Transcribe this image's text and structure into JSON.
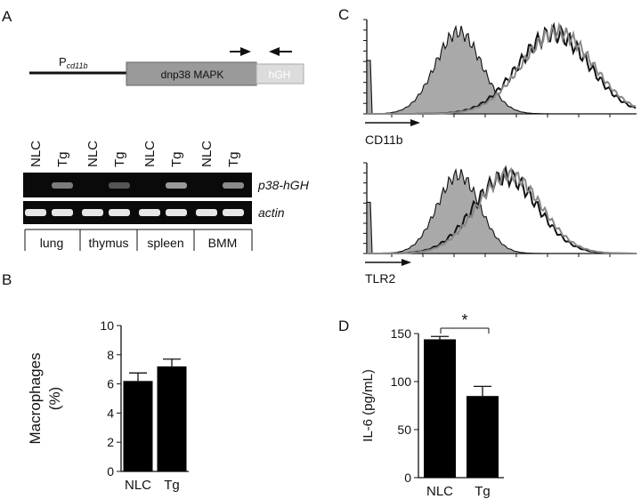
{
  "panels": {
    "a": {
      "letter": "A",
      "promoter": "P",
      "promoter_sub": "cd11b",
      "construct": "dnp38 MAPK",
      "tag": "hGH",
      "lane_labels": [
        "NLC",
        "Tg",
        "NLC",
        "Tg",
        "NLC",
        "Tg",
        "NLC",
        "Tg"
      ],
      "gel_labels": [
        "p38-hGH",
        "actin"
      ],
      "tissues": [
        "lung",
        "thymus",
        "spleen",
        "BMM"
      ],
      "band_intensity_p38": [
        0.0,
        0.55,
        0.0,
        0.3,
        0.0,
        0.75,
        0.0,
        0.65
      ]
    },
    "b": {
      "letter": "B"
    },
    "c": {
      "letter": "C",
      "marker_top": "CD11b",
      "marker_bottom": "TLR2"
    },
    "d": {
      "letter": "D",
      "significance": "*"
    }
  },
  "chart_data": [
    {
      "type": "bar",
      "panel": "B",
      "categories": [
        "NLC",
        "Tg"
      ],
      "values": [
        6.2,
        7.2
      ],
      "errors": [
        0.55,
        0.5
      ],
      "ylabel": "Macrophages",
      "ylabel_unit": "(%)",
      "ylim": [
        0,
        10
      ],
      "yticks": [
        "0",
        "2",
        "4",
        "6",
        "8",
        "10"
      ],
      "color": "#000000"
    },
    {
      "type": "bar",
      "panel": "D",
      "categories": [
        "NLC",
        "Tg"
      ],
      "values": [
        144,
        85
      ],
      "errors": [
        3,
        10
      ],
      "ylabel": "IL-6 (pg/mL)",
      "ylim": [
        0,
        150
      ],
      "yticks": [
        "0",
        "50",
        "100",
        "150"
      ],
      "color": "#000000"
    }
  ]
}
